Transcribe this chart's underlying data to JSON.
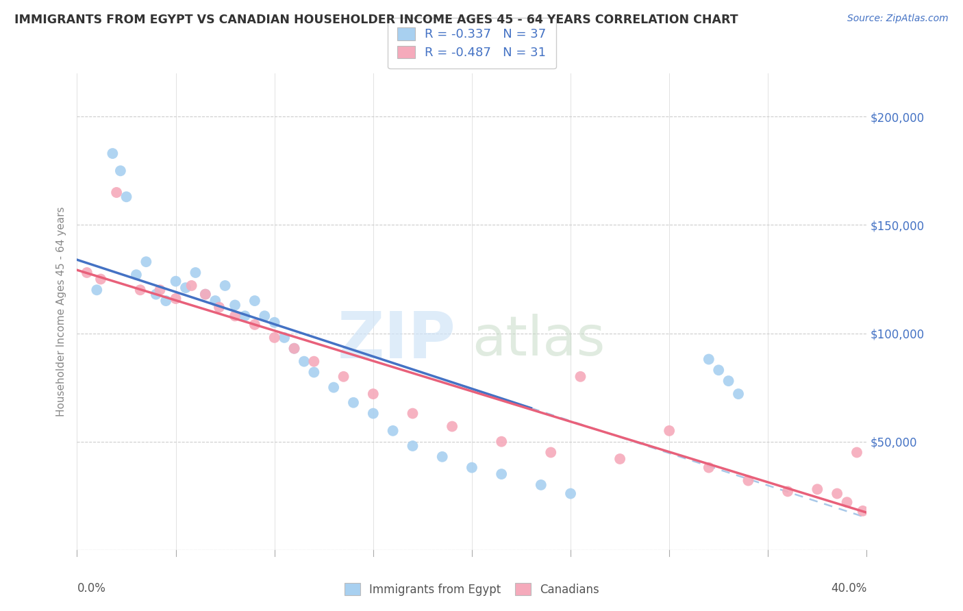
{
  "title": "IMMIGRANTS FROM EGYPT VS CANADIAN HOUSEHOLDER INCOME AGES 45 - 64 YEARS CORRELATION CHART",
  "source": "Source: ZipAtlas.com",
  "ylabel": "Householder Income Ages 45 - 64 years",
  "xlim": [
    0.0,
    40.0
  ],
  "ylim": [
    0,
    220000
  ],
  "legend_entry1": "R = -0.337   N = 37",
  "legend_entry2": "R = -0.487   N = 31",
  "legend_label1": "Immigrants from Egypt",
  "legend_label2": "Canadians",
  "color_blue": "#A8D0F0",
  "color_pink": "#F5AABB",
  "color_blue_line": "#4472C4",
  "color_pink_line": "#E8607A",
  "color_dashed": "#A8C8E8",
  "blue_x": [
    1.0,
    1.8,
    2.2,
    2.5,
    3.0,
    3.5,
    4.0,
    4.5,
    5.0,
    5.5,
    6.0,
    6.5,
    7.0,
    7.5,
    8.0,
    8.5,
    9.0,
    9.5,
    10.0,
    10.5,
    11.0,
    11.5,
    12.0,
    13.0,
    14.0,
    15.0,
    16.0,
    17.0,
    18.5,
    20.0,
    21.5,
    23.5,
    25.0,
    32.0,
    32.5,
    33.0,
    33.5
  ],
  "blue_y": [
    120000,
    183000,
    175000,
    163000,
    127000,
    133000,
    118000,
    115000,
    124000,
    121000,
    128000,
    118000,
    115000,
    122000,
    113000,
    108000,
    115000,
    108000,
    105000,
    98000,
    93000,
    87000,
    82000,
    75000,
    68000,
    63000,
    55000,
    48000,
    43000,
    38000,
    35000,
    30000,
    26000,
    88000,
    83000,
    78000,
    72000
  ],
  "pink_x": [
    0.5,
    1.2,
    2.0,
    3.2,
    4.2,
    5.0,
    5.8,
    6.5,
    7.2,
    8.0,
    9.0,
    10.0,
    11.0,
    12.0,
    13.5,
    15.0,
    17.0,
    19.0,
    21.5,
    24.0,
    25.5,
    27.5,
    30.0,
    32.0,
    34.0,
    36.0,
    37.5,
    38.5,
    39.0,
    39.5,
    39.8
  ],
  "pink_y": [
    128000,
    125000,
    165000,
    120000,
    120000,
    116000,
    122000,
    118000,
    112000,
    108000,
    104000,
    98000,
    93000,
    87000,
    80000,
    72000,
    63000,
    57000,
    50000,
    45000,
    80000,
    42000,
    55000,
    38000,
    32000,
    27000,
    28000,
    26000,
    22000,
    45000,
    18000
  ]
}
